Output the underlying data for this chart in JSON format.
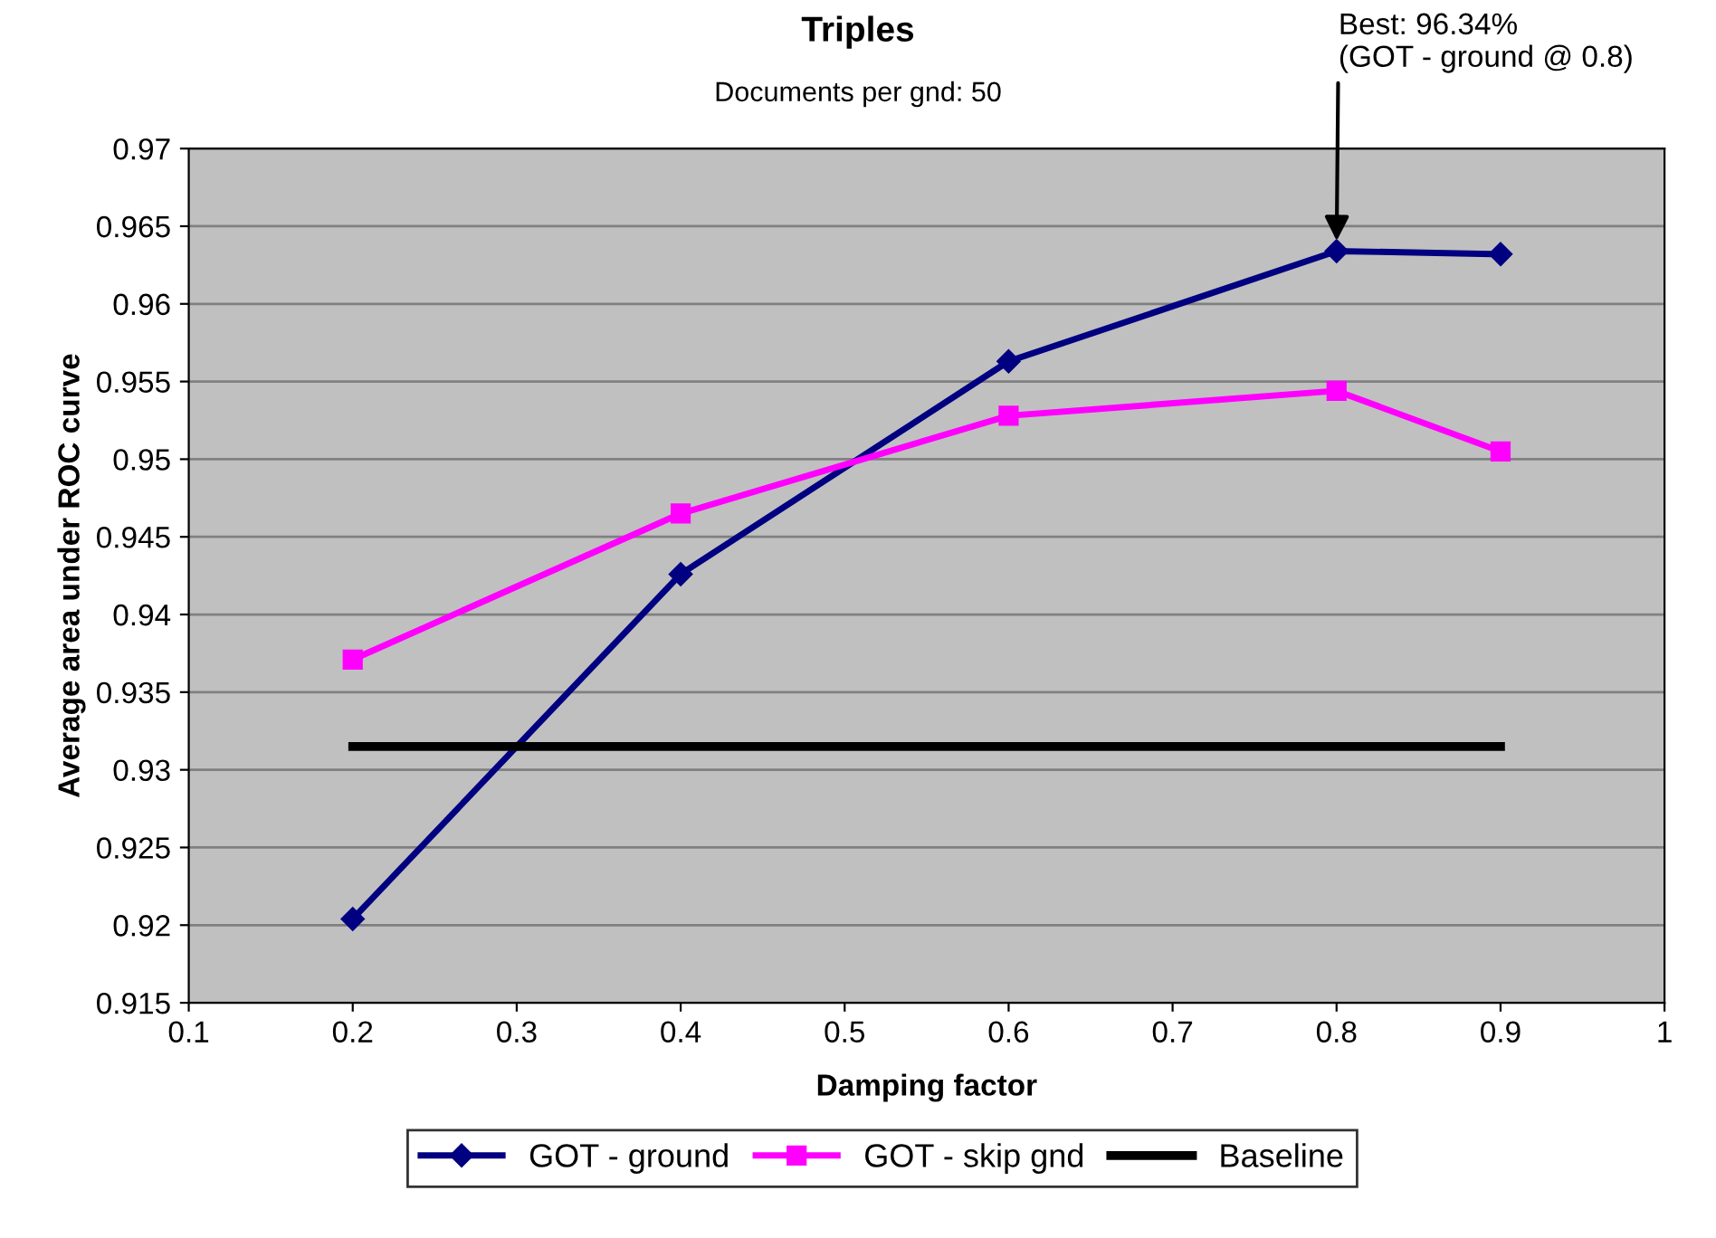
{
  "chart_data": {
    "type": "line",
    "title": "Triples",
    "subtitle": "Documents per gnd: 50",
    "xlabel": "Damping factor",
    "ylabel": "Average area under ROC curve",
    "xlim": [
      0.1,
      1
    ],
    "xticks": [
      0.1,
      0.2,
      0.3,
      0.4,
      0.5,
      0.6,
      0.7,
      0.8,
      0.9,
      1
    ],
    "ylim": [
      0.915,
      0.97
    ],
    "yticks": [
      0.915,
      0.92,
      0.925,
      0.93,
      0.935,
      0.94,
      0.945,
      0.95,
      0.955,
      0.96,
      0.965,
      0.97
    ],
    "grid": "y",
    "legend": "bottom",
    "series": [
      {
        "name": "GOT - ground",
        "color": "#000080",
        "marker": "diamond",
        "x": [
          0.2,
          0.4,
          0.6,
          0.8,
          0.9
        ],
        "values": [
          0.9204,
          0.9426,
          0.9563,
          0.9634,
          0.9632
        ]
      },
      {
        "name": "GOT - skip gnd",
        "color": "#ff00ff",
        "marker": "square",
        "x": [
          0.2,
          0.4,
          0.6,
          0.8,
          0.9
        ],
        "values": [
          0.9371,
          0.9465,
          0.9528,
          0.9544,
          0.9505
        ]
      },
      {
        "name": "Baseline",
        "color": "#000000",
        "marker": "none",
        "x": [
          0.2,
          0.9
        ],
        "values": [
          0.9315,
          0.9315
        ]
      }
    ],
    "annotations": [
      {
        "text": "Best: 96.34%\n(GOT - ground @ 0.8)",
        "x": 0.8,
        "y": 0.9634
      }
    ]
  }
}
